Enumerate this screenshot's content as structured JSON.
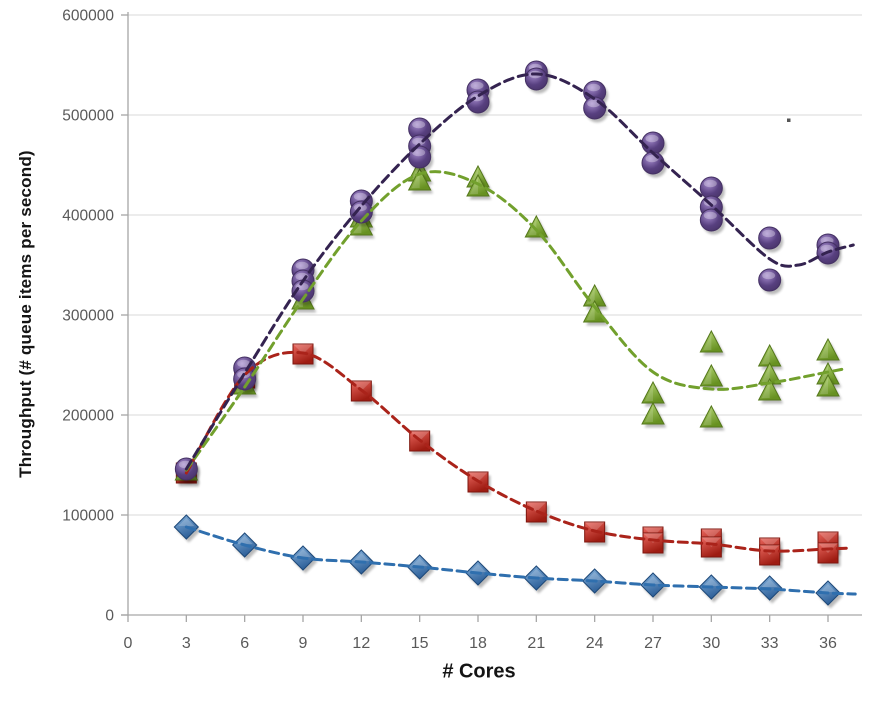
{
  "chart_data": {
    "type": "scatter",
    "title": "",
    "xlabel": "# Cores",
    "ylabel": "Throughput (# queue items per second)",
    "xlim": [
      0,
      37.8
    ],
    "ylim": [
      0,
      600000
    ],
    "x_ticks": [
      0,
      3,
      6,
      9,
      12,
      15,
      18,
      21,
      24,
      27,
      30,
      33,
      36
    ],
    "y_ticks": [
      0,
      100000,
      200000,
      300000,
      400000,
      500000,
      600000
    ],
    "grid": "horizontal",
    "legend_position": "none",
    "trendlines": "dashed",
    "series": [
      {
        "name": "blue-diamonds",
        "marker": "diamond",
        "fill_light": "#85b2dd",
        "fill_dark": "#2d5f98",
        "stroke": "#1d4878",
        "trend_color": "#2f6fae",
        "points": [
          [
            3,
            88000
          ],
          [
            6,
            70000
          ],
          [
            9,
            57000
          ],
          [
            12,
            53000
          ],
          [
            15,
            48000
          ],
          [
            18,
            42000
          ],
          [
            21,
            37000
          ],
          [
            24,
            34000
          ],
          [
            27,
            30000
          ],
          [
            30,
            28000
          ],
          [
            33,
            27000
          ],
          [
            36,
            22000
          ]
        ],
        "trend": [
          [
            3,
            88000
          ],
          [
            6,
            70000
          ],
          [
            9,
            57000
          ],
          [
            12,
            53000
          ],
          [
            15,
            48000
          ],
          [
            18,
            42000
          ],
          [
            21,
            37000
          ],
          [
            24,
            34000
          ],
          [
            27,
            30000
          ],
          [
            30,
            28000
          ],
          [
            33,
            26000
          ],
          [
            36,
            22000
          ],
          [
            37.4,
            21000
          ]
        ]
      },
      {
        "name": "red-squares",
        "marker": "square",
        "fill_light": "#ea675e",
        "fill_dark": "#9e1c12",
        "stroke": "#7e150d",
        "trend_color": "#aa231a",
        "points": [
          [
            3,
            142000
          ],
          [
            6,
            237000
          ],
          [
            9,
            261000
          ],
          [
            12,
            224000
          ],
          [
            15,
            174000
          ],
          [
            18,
            133000
          ],
          [
            21,
            103000
          ],
          [
            24,
            83000
          ],
          [
            27,
            78000
          ],
          [
            27,
            72000
          ],
          [
            30,
            76000
          ],
          [
            30,
            68000
          ],
          [
            33,
            67000
          ],
          [
            33,
            60000
          ],
          [
            36,
            73000
          ],
          [
            36,
            62000
          ]
        ],
        "trend": [
          [
            3,
            142000
          ],
          [
            6,
            240000
          ],
          [
            9,
            262000
          ],
          [
            12,
            225000
          ],
          [
            15,
            175000
          ],
          [
            18,
            134000
          ],
          [
            21,
            104000
          ],
          [
            24,
            84000
          ],
          [
            27,
            75000
          ],
          [
            30,
            71000
          ],
          [
            33,
            64000
          ],
          [
            36,
            66000
          ],
          [
            37.2,
            67000
          ]
        ]
      },
      {
        "name": "green-triangles",
        "marker": "triangle",
        "fill_light": "#bcdc7d",
        "fill_dark": "#679121",
        "stroke": "#54771b",
        "trend_color": "#72a02d",
        "points": [
          [
            3,
            144000
          ],
          [
            6,
            230000
          ],
          [
            9,
            315000
          ],
          [
            12,
            397000
          ],
          [
            12,
            389000
          ],
          [
            15,
            443000
          ],
          [
            15,
            434000
          ],
          [
            18,
            437000
          ],
          [
            18,
            428000
          ],
          [
            21,
            387000
          ],
          [
            24,
            318000
          ],
          [
            24,
            302000
          ],
          [
            27,
            221000
          ],
          [
            27,
            200000
          ],
          [
            30,
            272000
          ],
          [
            30,
            238000
          ],
          [
            30,
            197000
          ],
          [
            33,
            258000
          ],
          [
            33,
            240000
          ],
          [
            33,
            224000
          ],
          [
            36,
            264000
          ],
          [
            36,
            240000
          ],
          [
            36,
            228000
          ]
        ],
        "trend": [
          [
            3,
            145000
          ],
          [
            6,
            228000
          ],
          [
            9,
            316000
          ],
          [
            12,
            394000
          ],
          [
            15,
            441000
          ],
          [
            18,
            431000
          ],
          [
            21,
            385000
          ],
          [
            24,
            308000
          ],
          [
            27,
            243000
          ],
          [
            30,
            226000
          ],
          [
            33,
            232000
          ],
          [
            36,
            243000
          ],
          [
            36.8,
            246000
          ]
        ]
      },
      {
        "name": "purple-circles",
        "marker": "circle",
        "fill_light": "#a68cce",
        "fill_dark": "#584080",
        "stroke": "#453164",
        "trend_color": "#342350",
        "points": [
          [
            3,
            146000
          ],
          [
            6,
            247000
          ],
          [
            6,
            236000
          ],
          [
            9,
            345000
          ],
          [
            9,
            334000
          ],
          [
            9,
            324000
          ],
          [
            12,
            414000
          ],
          [
            12,
            403000
          ],
          [
            15,
            486000
          ],
          [
            15,
            469000
          ],
          [
            15,
            458000
          ],
          [
            18,
            525000
          ],
          [
            18,
            513000
          ],
          [
            21,
            543000
          ],
          [
            21,
            536000
          ],
          [
            24,
            523000
          ],
          [
            24,
            507000
          ],
          [
            27,
            472000
          ],
          [
            27,
            452000
          ],
          [
            30,
            427000
          ],
          [
            30,
            408000
          ],
          [
            30,
            395000
          ],
          [
            33,
            377000
          ],
          [
            33,
            335000
          ],
          [
            36,
            370000
          ],
          [
            36,
            362000
          ]
        ],
        "trend": [
          [
            3,
            146000
          ],
          [
            6,
            242000
          ],
          [
            9,
            334000
          ],
          [
            12,
            409000
          ],
          [
            15,
            471000
          ],
          [
            18,
            519000
          ],
          [
            21,
            541000
          ],
          [
            24,
            516000
          ],
          [
            27,
            462000
          ],
          [
            30,
            410000
          ],
          [
            33,
            356000
          ],
          [
            34.5,
            350000
          ],
          [
            36,
            363000
          ],
          [
            37.3,
            370000
          ]
        ]
      }
    ]
  }
}
